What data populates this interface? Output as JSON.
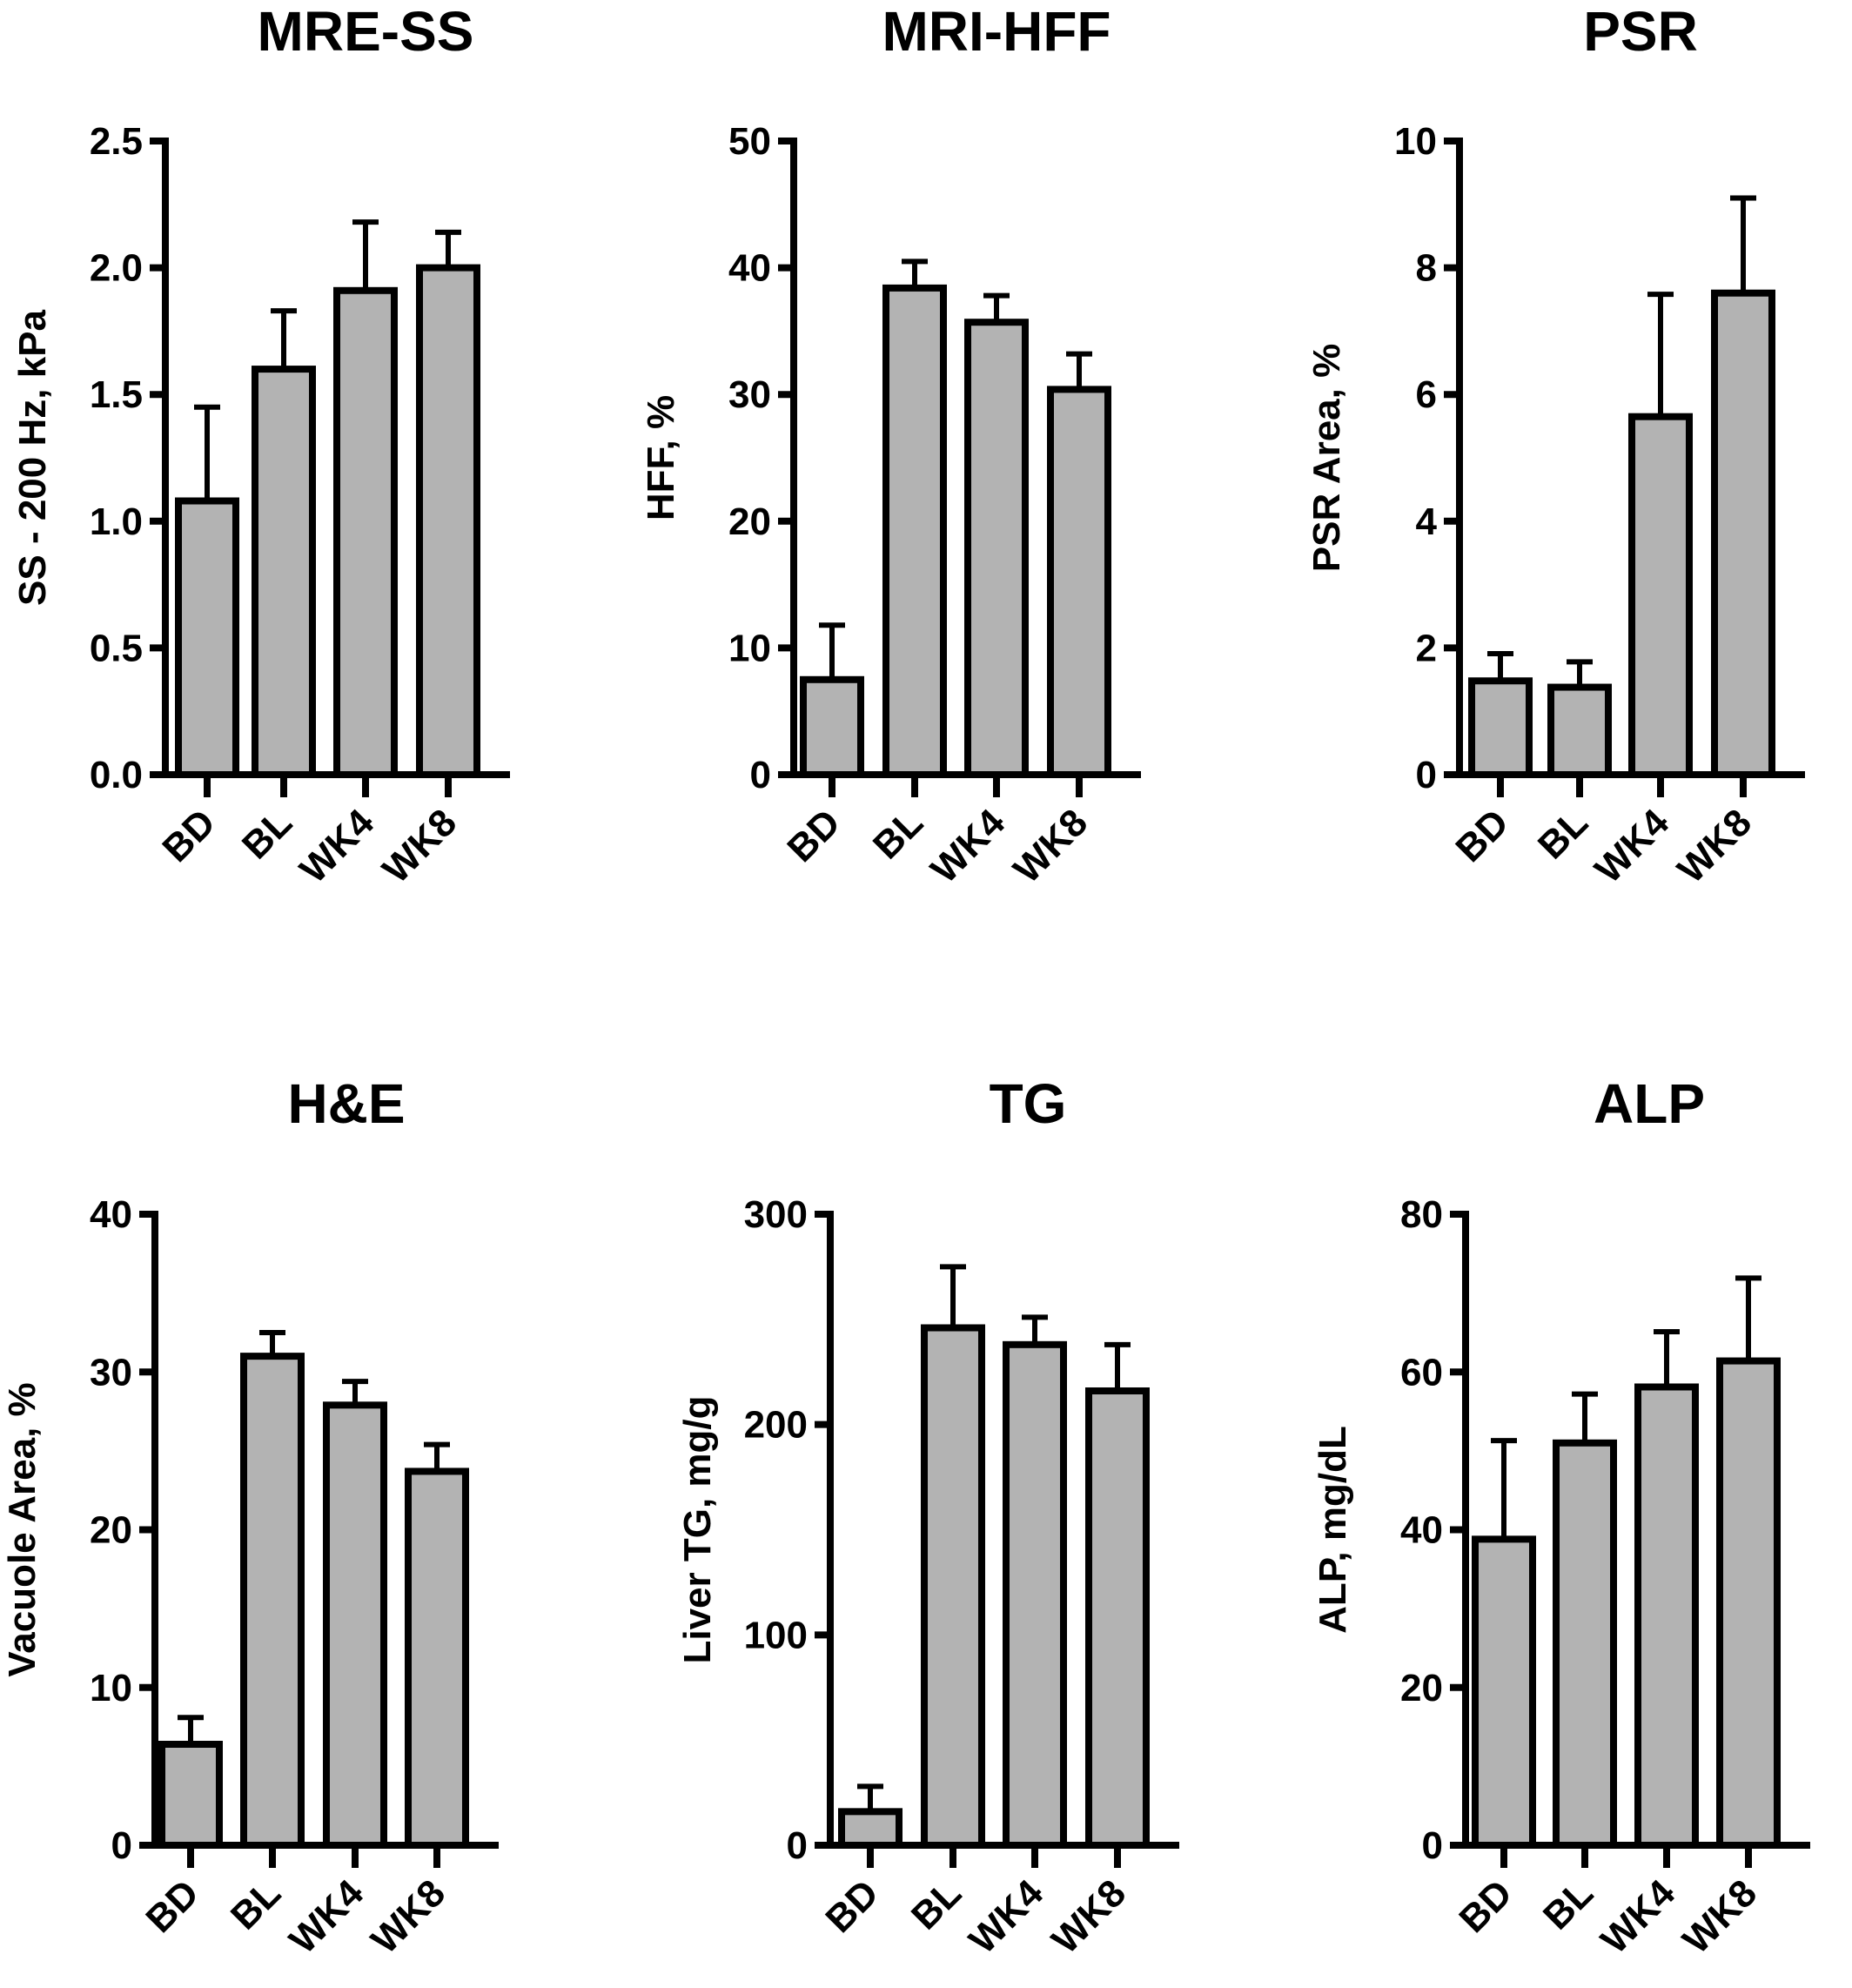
{
  "chart_data": [
    {
      "type": "bar",
      "title": "MRE-SS",
      "xlabel": "",
      "ylabel": "SS - 200 Hz, kPa",
      "categories": [
        "BD",
        "BL",
        "WK4",
        "WK8"
      ],
      "values": [
        1.08,
        1.6,
        1.91,
        2.0
      ],
      "errors": [
        0.37,
        0.23,
        0.27,
        0.14
      ],
      "ylim": [
        0,
        2.5
      ],
      "yticks": [
        "0.0",
        "0.5",
        "1.0",
        "1.5",
        "2.0",
        "2.5"
      ],
      "bar_color": "#b3b3b3",
      "grid": false,
      "legend": "none"
    },
    {
      "type": "bar",
      "title": "MRI-HFF",
      "xlabel": "",
      "ylabel": "HFF, %",
      "categories": [
        "BD",
        "BL",
        "WK4",
        "WK8"
      ],
      "values": [
        7.5,
        38.4,
        35.7,
        30.4
      ],
      "errors": [
        4.3,
        2.1,
        2.1,
        2.8
      ],
      "ylim": [
        0,
        50
      ],
      "yticks": [
        "0",
        "10",
        "20",
        "30",
        "40",
        "50"
      ],
      "bar_color": "#b3b3b3",
      "grid": false,
      "legend": "none"
    },
    {
      "type": "bar",
      "title": "PSR",
      "xlabel": "",
      "ylabel": "PSR Area, %",
      "categories": [
        "BD",
        "BL",
        "WK4",
        "WK8"
      ],
      "values": [
        1.48,
        1.38,
        5.65,
        7.6
      ],
      "errors": [
        0.43,
        0.4,
        1.93,
        1.5
      ],
      "ylim": [
        0,
        10
      ],
      "yticks": [
        "0",
        "2",
        "4",
        "6",
        "8",
        "10"
      ],
      "bar_color": "#b3b3b3",
      "grid": false,
      "legend": "none"
    },
    {
      "type": "bar",
      "title": "H&E",
      "xlabel": "",
      "ylabel": "Vacuole Area, %",
      "categories": [
        "BD",
        "BL",
        "WK4",
        "WK8"
      ],
      "values": [
        6.4,
        31.0,
        27.9,
        23.7
      ],
      "errors": [
        1.7,
        1.5,
        1.5,
        1.7
      ],
      "ylim": [
        0,
        40
      ],
      "yticks": [
        "0",
        "10",
        "20",
        "30",
        "40"
      ],
      "bar_color": "#b3b3b3",
      "grid": false,
      "legend": "none"
    },
    {
      "type": "bar",
      "title": "TG",
      "xlabel": "",
      "ylabel": "Liver TG, mg/g",
      "categories": [
        "BD",
        "BL",
        "WK4",
        "WK8"
      ],
      "values": [
        16,
        246,
        238,
        216
      ],
      "errors": [
        12,
        29,
        13,
        22
      ],
      "ylim": [
        0,
        300
      ],
      "yticks": [
        "0",
        "100",
        "200",
        "300"
      ],
      "bar_color": "#b3b3b3",
      "grid": false,
      "legend": "none"
    },
    {
      "type": "bar",
      "title": "ALP",
      "xlabel": "",
      "ylabel": "ALP, mg/dL",
      "categories": [
        "BD",
        "BL",
        "WK4",
        "WK8"
      ],
      "values": [
        38.8,
        51.0,
        58.1,
        61.4
      ],
      "errors": [
        12.5,
        6.2,
        7.0,
        10.5
      ],
      "ylim": [
        0,
        80
      ],
      "yticks": [
        "0",
        "20",
        "40",
        "60",
        "80"
      ],
      "bar_color": "#b3b3b3",
      "grid": false,
      "legend": "none"
    }
  ]
}
